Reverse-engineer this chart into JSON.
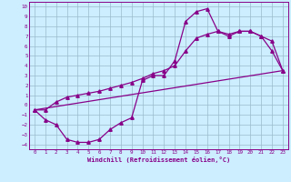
{
  "xlabel": "Windchill (Refroidissement éolien,°C)",
  "xlim": [
    -0.5,
    23.5
  ],
  "ylim": [
    -4.5,
    10.5
  ],
  "xticks": [
    0,
    1,
    2,
    3,
    4,
    5,
    6,
    7,
    8,
    9,
    10,
    11,
    12,
    13,
    14,
    15,
    16,
    17,
    18,
    19,
    20,
    21,
    22,
    23
  ],
  "yticks": [
    -4,
    -3,
    -2,
    -1,
    0,
    1,
    2,
    3,
    4,
    5,
    6,
    7,
    8,
    9,
    10
  ],
  "bg_color": "#cceeff",
  "grid_color": "#99bbcc",
  "line_color": "#880088",
  "line1_x": [
    0,
    1,
    2,
    3,
    4,
    5,
    6,
    7,
    8,
    9,
    10,
    11,
    12,
    13,
    14,
    15,
    16,
    17,
    18,
    19,
    20,
    21,
    22,
    23
  ],
  "line1_y": [
    -0.5,
    -1.5,
    -2.0,
    -3.5,
    -3.8,
    -3.8,
    -3.5,
    -2.5,
    -1.8,
    -1.3,
    2.5,
    3.0,
    3.0,
    4.5,
    8.5,
    9.5,
    9.8,
    7.5,
    7.0,
    7.5,
    7.5,
    7.0,
    5.5,
    3.5
  ],
  "line2_x": [
    0,
    1,
    2,
    3,
    4,
    5,
    6,
    7,
    8,
    9,
    10,
    11,
    12,
    13,
    14,
    15,
    16,
    17,
    18,
    19,
    20,
    21,
    22,
    23
  ],
  "line2_y": [
    -0.5,
    -0.5,
    0.3,
    0.8,
    1.0,
    1.2,
    1.4,
    1.7,
    2.0,
    2.3,
    2.7,
    3.2,
    3.5,
    4.0,
    5.5,
    6.8,
    7.2,
    7.5,
    7.2,
    7.5,
    7.5,
    7.0,
    6.5,
    3.5
  ],
  "line3_x": [
    0,
    23
  ],
  "line3_y": [
    -0.5,
    3.5
  ],
  "marker": "^",
  "markersize": 2.5,
  "linewidth": 0.9
}
